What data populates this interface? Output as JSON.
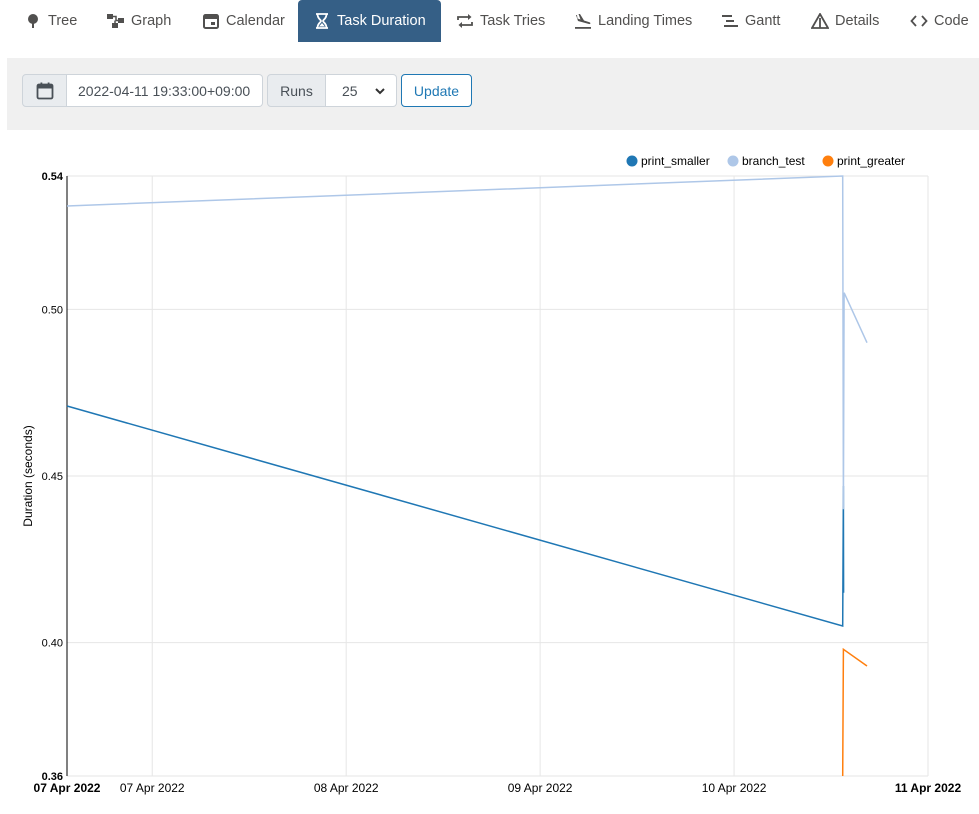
{
  "tabs": [
    {
      "label": "Tree",
      "icon": "tree-icon"
    },
    {
      "label": "Graph",
      "icon": "graph-icon"
    },
    {
      "label": "Calendar",
      "icon": "calendar-icon"
    },
    {
      "label": "Task Duration",
      "icon": "hourglass-icon",
      "active": true
    },
    {
      "label": "Task Tries",
      "icon": "retry-icon"
    },
    {
      "label": "Landing Times",
      "icon": "plane-landing-icon"
    },
    {
      "label": "Gantt",
      "icon": "gantt-icon"
    },
    {
      "label": "Details",
      "icon": "details-icon"
    },
    {
      "label": "Code",
      "icon": "code-icon"
    }
  ],
  "toolbar": {
    "date_value": "2022-04-11 19:33:00+09:00",
    "runs_label": "Runs",
    "runs_value": "25",
    "update_label": "Update"
  },
  "colors": {
    "active_tab": "#355f86",
    "print_smaller": "#1f77b4",
    "branch_test": "#aec7e8",
    "print_greater": "#ff7f0e"
  },
  "chart_data": {
    "type": "line",
    "ylabel": "Duration (seconds)",
    "xlabel": "",
    "ylim": [
      0.36,
      0.54
    ],
    "y_ticks": [
      "0.54",
      "0.50",
      "0.45",
      "0.40",
      "0.36"
    ],
    "x_ticks": [
      "07 Apr 2022",
      "07 Apr 2022",
      "08 Apr 2022",
      "09 Apr 2022",
      "10 Apr 2022",
      "11 Apr 2022"
    ],
    "x_tick_bold": [
      true,
      false,
      false,
      false,
      false,
      true
    ],
    "x_range": [
      "2022-04-07T00:00",
      "2022-04-11T10:33"
    ],
    "x_tick_dates": [
      "2022-04-07T00:00",
      "2022-04-07T10:33",
      "2022-04-08T10:33",
      "2022-04-09T10:33",
      "2022-04-10T10:33",
      "2022-04-11T10:33"
    ],
    "grid": true,
    "legend_position": "top-right",
    "series": [
      {
        "name": "print_smaller",
        "color": "#1f77b4",
        "points": [
          {
            "x": "2022-04-07T00:00",
            "y": 0.471
          },
          {
            "x": "2022-04-11T00:00",
            "y": 0.405
          },
          {
            "x": "2022-04-11T00:05",
            "y": 0.447
          },
          {
            "x": "2022-04-11T00:06",
            "y": 0.415
          }
        ]
      },
      {
        "name": "branch_test",
        "color": "#aec7e8",
        "points": [
          {
            "x": "2022-04-07T00:00",
            "y": 0.531
          },
          {
            "x": "2022-04-11T00:00",
            "y": 0.54
          },
          {
            "x": "2022-04-11T00:05",
            "y": 0.44
          },
          {
            "x": "2022-04-11T00:10",
            "y": 0.505
          },
          {
            "x": "2022-04-11T03:00",
            "y": 0.49
          }
        ]
      },
      {
        "name": "print_greater",
        "color": "#ff7f0e",
        "points": [
          {
            "x": "2022-04-11T00:00",
            "y": 0.36
          },
          {
            "x": "2022-04-11T00:05",
            "y": 0.398
          },
          {
            "x": "2022-04-11T03:00",
            "y": 0.393
          }
        ]
      }
    ]
  }
}
